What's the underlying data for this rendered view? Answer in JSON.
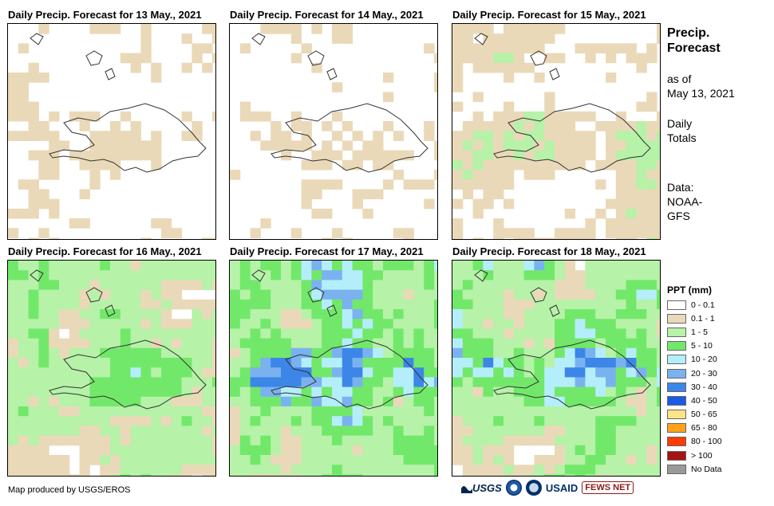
{
  "panels": [
    {
      "title": "Daily Precip. Forecast for 13 May., 2021",
      "seed": 13,
      "wet": 0.35
    },
    {
      "title": "Daily Precip. Forecast for 14 May., 2021",
      "seed": 14,
      "wet": 0.3
    },
    {
      "title": "Daily Precip. Forecast for 15 May., 2021",
      "seed": 15,
      "wet": 0.55
    },
    {
      "title": "Daily Precip. Forecast for 16 May., 2021",
      "seed": 16,
      "wet": 1.0
    },
    {
      "title": "Daily Precip. Forecast for 17 May., 2021",
      "seed": 17,
      "wet": 1.15
    },
    {
      "title": "Daily Precip. Forecast for 18 May., 2021",
      "seed": 18,
      "wet": 1.2
    }
  ],
  "info": {
    "title_line1": "Precip.",
    "title_line2": "Forecast",
    "asof_line1": "as of",
    "asof_line2": "May 13, 2021",
    "totals_line1": "Daily",
    "totals_line2": "Totals",
    "source_line1": "Data:",
    "source_line2": "NOAA-",
    "source_line3": "GFS"
  },
  "legend": {
    "title": "PPT (mm)",
    "items": [
      {
        "label": "0 - 0.1",
        "color": "#ffffff"
      },
      {
        "label": "0.1 - 1",
        "color": "#ead9b8"
      },
      {
        "label": "1 - 5",
        "color": "#b6f2a8"
      },
      {
        "label": "5 - 10",
        "color": "#72e86a"
      },
      {
        "label": "10 - 20",
        "color": "#b4eefa"
      },
      {
        "label": "20 - 30",
        "color": "#7ab2f0"
      },
      {
        "label": "30 - 40",
        "color": "#3c86e8"
      },
      {
        "label": "40 - 50",
        "color": "#1a5ae6"
      },
      {
        "label": "50 - 65",
        "color": "#ffe48a"
      },
      {
        "label": "65 - 80",
        "color": "#ffa21a"
      },
      {
        "label": "80 - 100",
        "color": "#ff3c00"
      },
      {
        "label": "> 100",
        "color": "#a51414"
      },
      {
        "label": "No Data",
        "color": "#999999"
      }
    ]
  },
  "footer": {
    "credit": "Map produced by USGS/EROS",
    "logo_usgs": "USGS",
    "logo_usaid": "USAID",
    "logo_fews": "FEWS NET"
  }
}
